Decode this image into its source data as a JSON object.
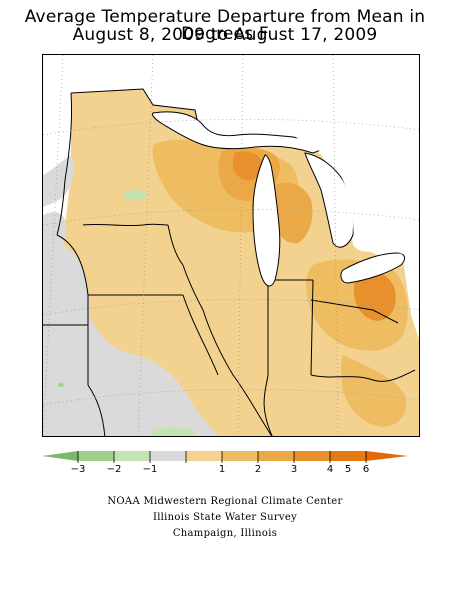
{
  "title": {
    "line1": "Average Temperature Departure from Mean in Degrees F",
    "line2": "August 8, 2009 to August 17, 2009"
  },
  "legend": {
    "ticks": [
      "−3",
      "−2",
      "−1",
      "1",
      "2",
      "3",
      "4",
      "5",
      "6"
    ],
    "colors": [
      "#7ab86a",
      "#9fd18c",
      "#c2e4b0",
      "#dadada",
      "#f2d28e",
      "#eebd62",
      "#eaa846",
      "#e8902c",
      "#e67a12",
      "#e06a06"
    ]
  },
  "credits": [
    "NOAA Midwestern Regional Climate Center",
    "Illinois State Water Survey",
    "Champaign, Illinois"
  ]
}
